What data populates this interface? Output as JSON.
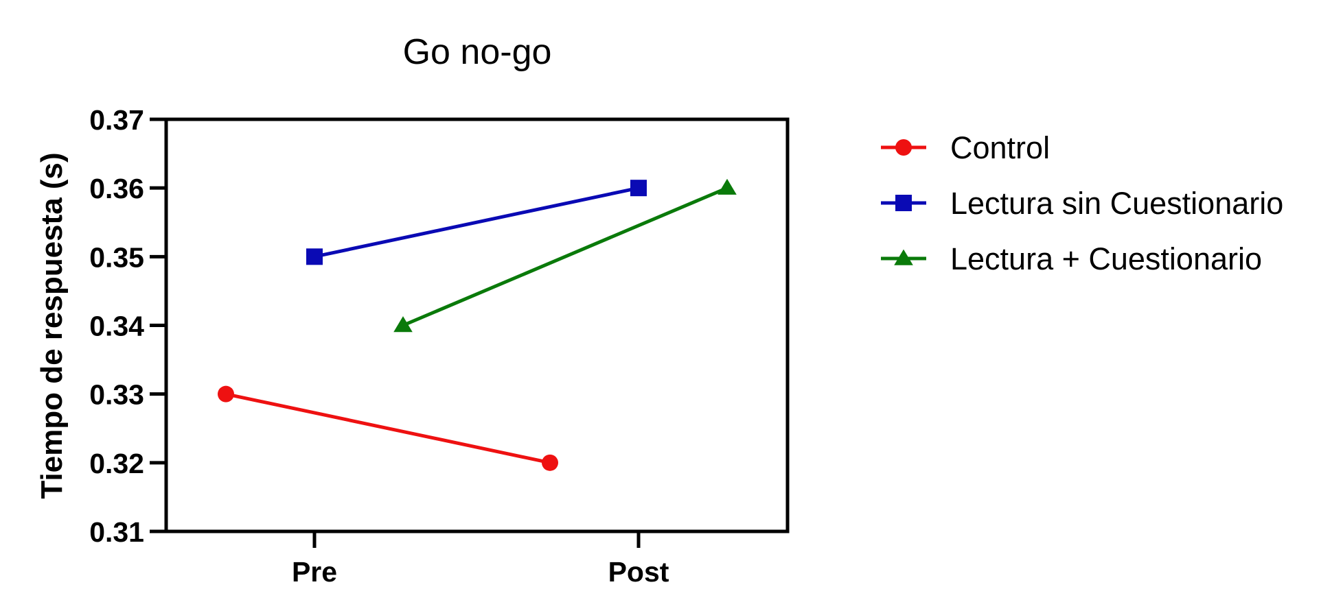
{
  "chart_data": {
    "type": "line",
    "title": "Go no-go",
    "xlabel": "",
    "ylabel": "Tiempo de respuesta (s)",
    "categories": [
      "Pre",
      "Post"
    ],
    "ylim": [
      0.31,
      0.37
    ],
    "yticks": [
      "0.31",
      "0.32",
      "0.33",
      "0.34",
      "0.35",
      "0.36",
      "0.37"
    ],
    "grid": false,
    "legend_position": "right",
    "series": [
      {
        "name": "Control",
        "values": [
          0.33,
          0.32
        ],
        "color": "#ee1111",
        "marker": "circle"
      },
      {
        "name": "Lectura sin Cuestionario",
        "values": [
          0.35,
          0.36
        ],
        "color": "#0a0ab4",
        "marker": "square"
      },
      {
        "name": "Lectura + Cuestionario",
        "values": [
          0.34,
          0.36
        ],
        "color": "#0a7a0a",
        "marker": "triangle"
      }
    ]
  }
}
